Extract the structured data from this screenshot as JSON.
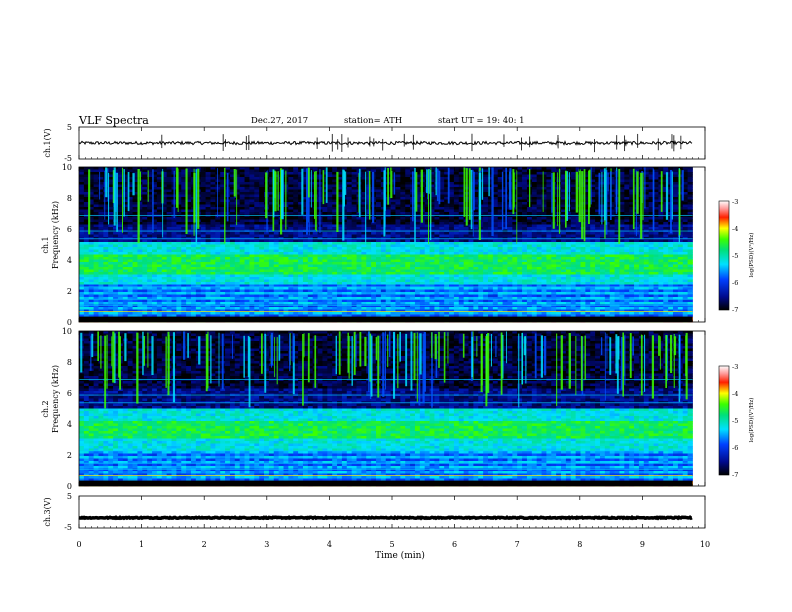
{
  "header": {
    "title": "VLF  Spectra",
    "date": "Dec.27, 2017",
    "station": "station= ATH",
    "start_ut": "start  UT  =    19: 40: 1"
  },
  "chart_data": [
    {
      "type": "line",
      "name": "ch1-waveform",
      "ylabel": "ch.1(V)",
      "ylim": [
        -5,
        5
      ],
      "y_ticks": [
        "5",
        "-5"
      ],
      "xlim": [
        0,
        10
      ],
      "approx_level": 0
    },
    {
      "type": "heatmap",
      "name": "ch1-spectrogram",
      "ylabel": "ch.1",
      "ylabel2": "Frequency  (kHz)",
      "ylim": [
        0,
        10
      ],
      "y_ticks": [
        "0",
        "2",
        "4",
        "6",
        "8",
        "10"
      ],
      "xlim": [
        0,
        10
      ],
      "data_end_min": 9.8,
      "colorbar": {
        "label": "log(PSD)(V²/Hz)",
        "min": -7,
        "max": -3,
        "ticks": [
          "-3",
          "-4",
          "-5",
          "-6",
          "-7"
        ]
      },
      "broadband_band_khz": [
        2.4,
        5.1
      ],
      "peak_band_khz": [
        3.0,
        4.3
      ]
    },
    {
      "type": "heatmap",
      "name": "ch2-spectrogram",
      "ylabel": "ch.2",
      "ylabel2": "Frequency  (kHz)",
      "ylim": [
        0,
        10
      ],
      "y_ticks": [
        "0",
        "2",
        "4",
        "6",
        "8",
        "10"
      ],
      "xlim": [
        0,
        10
      ],
      "data_end_min": 9.8,
      "colorbar": {
        "label": "log(PSD)(V²/Hz)",
        "min": -7,
        "max": -3,
        "ticks": [
          "-3",
          "-4",
          "-5",
          "-6",
          "-7"
        ]
      },
      "broadband_band_khz": [
        2.3,
        5.0
      ],
      "peak_band_khz": [
        3.0,
        4.2
      ]
    },
    {
      "type": "line",
      "name": "ch3-waveform",
      "ylabel": "ch.3(V)",
      "ylim": [
        -5,
        5
      ],
      "y_ticks": [
        "5",
        "-5"
      ],
      "xlim": [
        0,
        10
      ],
      "approx_level": -1.8
    }
  ],
  "xaxis": {
    "label": "Time  (min)",
    "ticks": [
      "0",
      "1",
      "2",
      "3",
      "4",
      "5",
      "6",
      "7",
      "8",
      "9",
      "10"
    ]
  }
}
